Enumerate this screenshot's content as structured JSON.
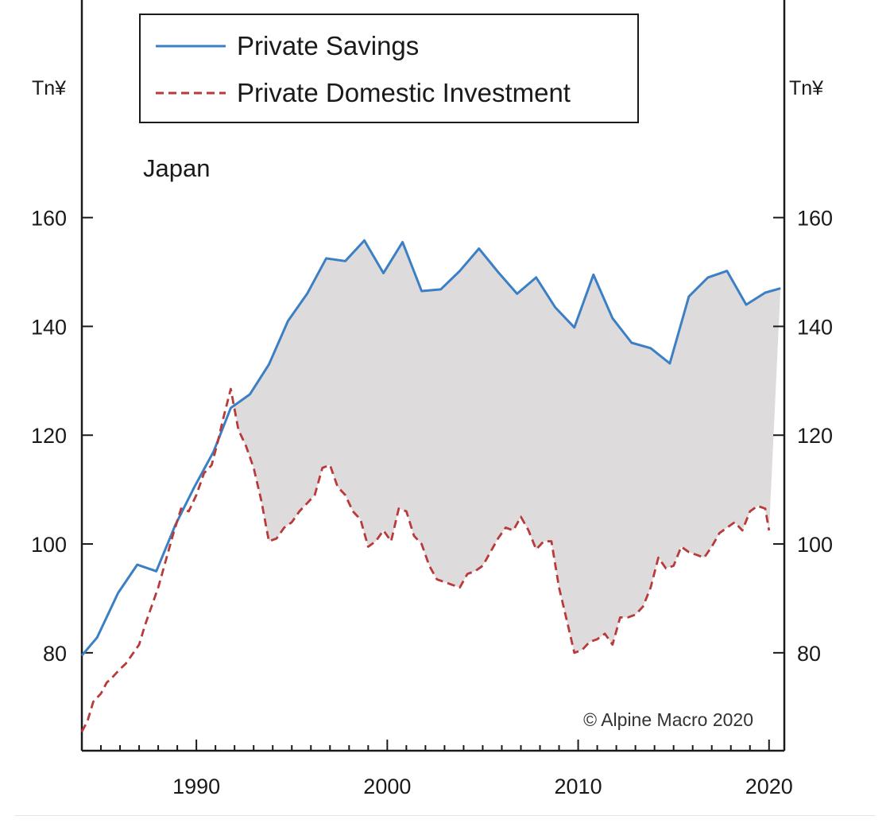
{
  "chart_data": {
    "type": "area",
    "annotation": "Japan",
    "copyright": "© Alpine Macro 2020",
    "y_unit_left": "Tn¥",
    "y_unit_right": "Tn¥",
    "ylim": [
      62,
      200
    ],
    "xlim": [
      1984.0,
      2020.8
    ],
    "x_ticks": [
      1990,
      2000,
      2010,
      2020
    ],
    "y_ticks": [
      80,
      100,
      120,
      140,
      160
    ],
    "grid": false,
    "legend_position": "top-left",
    "fill_between_color": "#dedbdd",
    "series": [
      {
        "name": "Private Savings",
        "style": "solid",
        "color": "#3b7fc4",
        "x": [
          1984,
          1984.8,
          1985.9,
          1986.9,
          1987.9,
          1988.9,
          1989.9,
          1990.9,
          1991.8,
          1992.8,
          1993.8,
          1994.8,
          1995.8,
          1996.8,
          1997.8,
          1998.8,
          1999.8,
          2000.8,
          2001.8,
          2002.8,
          2003.8,
          2004.8,
          2005.8,
          2006.8,
          2007.8,
          2008.8,
          2009.8,
          2010.8,
          2011.8,
          2012.8,
          2013.8,
          2014.8,
          2015.8,
          2016.8,
          2017.8,
          2018.8,
          2019.8,
          2020.6
        ],
        "values": [
          79.5,
          82.8,
          91.0,
          96.2,
          95.0,
          103.5,
          110.5,
          117.0,
          125.0,
          127.5,
          133.0,
          141.0,
          146.0,
          152.5,
          152.0,
          155.8,
          149.8,
          155.5,
          146.5,
          146.8,
          150.2,
          154.3,
          150.0,
          146.0,
          149.0,
          143.5,
          139.8,
          149.5,
          141.5,
          137.0,
          136.0,
          133.2,
          145.5,
          149.0,
          150.2,
          144.0,
          146.2,
          147.0
        ]
      },
      {
        "name": "Private Domestic Investment",
        "style": "dashed",
        "color": "#b83a3a",
        "x": [
          1984,
          1984.3,
          1984.6,
          1985.0,
          1985.3,
          1985.6,
          1986.0,
          1986.3,
          1986.6,
          1987.0,
          1987.3,
          1987.6,
          1988.0,
          1988.4,
          1988.8,
          1989.2,
          1989.6,
          1990.0,
          1990.4,
          1990.8,
          1991.1,
          1991.4,
          1991.8,
          1992.2,
          1992.6,
          1993.0,
          1993.4,
          1993.8,
          1994.2,
          1994.6,
          1995.0,
          1995.4,
          1995.8,
          1996.2,
          1996.6,
          1997.0,
          1997.4,
          1997.8,
          1998.2,
          1998.6,
          1999.0,
          1999.4,
          1999.8,
          2000.2,
          2000.6,
          2001.0,
          2001.4,
          2001.8,
          2002.2,
          2002.6,
          2003.0,
          2003.4,
          2003.8,
          2004.2,
          2004.6,
          2005.0,
          2005.4,
          2005.8,
          2006.2,
          2006.6,
          2007.0,
          2007.4,
          2007.8,
          2008.2,
          2008.6,
          2009.0,
          2009.4,
          2009.8,
          2010.2,
          2010.6,
          2011.0,
          2011.4,
          2011.8,
          2012.2,
          2012.6,
          2013.0,
          2013.4,
          2013.8,
          2014.2,
          2014.6,
          2015.0,
          2015.4,
          2015.8,
          2016.2,
          2016.6,
          2017.0,
          2017.4,
          2017.8,
          2018.2,
          2018.6,
          2019.0,
          2019.4,
          2019.8,
          2020.0
        ],
        "values": [
          65.5,
          67.5,
          71.0,
          72.5,
          74.5,
          75.5,
          77.0,
          78.0,
          79.5,
          81.5,
          85.0,
          88.0,
          92.0,
          97.0,
          102.0,
          106.5,
          106.0,
          109.0,
          113.0,
          114.5,
          118.5,
          123.0,
          128.5,
          121.0,
          118.0,
          114.0,
          108.0,
          100.5,
          101.0,
          103.0,
          104.0,
          106.0,
          107.5,
          109.0,
          114.0,
          114.5,
          110.5,
          109.0,
          106.0,
          104.5,
          99.5,
          100.5,
          102.5,
          100.5,
          106.5,
          106.0,
          101.5,
          100.0,
          96.0,
          93.5,
          93.0,
          92.5,
          92.0,
          94.5,
          95.0,
          96.0,
          98.5,
          101.0,
          103.0,
          102.5,
          105.0,
          102.5,
          99.0,
          100.5,
          100.5,
          92.0,
          86.0,
          80.0,
          80.5,
          82.0,
          82.5,
          83.5,
          81.5,
          86.5,
          86.5,
          87.0,
          88.5,
          92.0,
          97.5,
          95.5,
          96.0,
          99.5,
          98.5,
          98.0,
          97.5,
          99.5,
          102.0,
          103.0,
          104.0,
          102.5,
          106.0,
          107.0,
          106.5,
          102.5
        ]
      }
    ]
  }
}
